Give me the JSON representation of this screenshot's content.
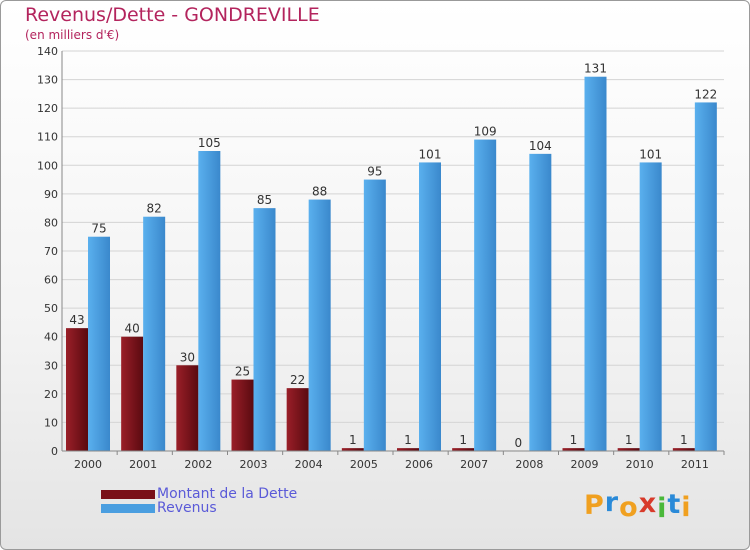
{
  "title": "Revenus/Dette - GONDREVILLE",
  "subtitle": "(en milliers d'€)",
  "colors": {
    "dette": "#7a1018",
    "revenus": "#4a9ee0",
    "title": "#b3245d",
    "legend_text": "#5a5ad8"
  },
  "chart_data": {
    "type": "bar",
    "categories": [
      "2000",
      "2001",
      "2002",
      "2003",
      "2004",
      "2005",
      "2006",
      "2007",
      "2008",
      "2009",
      "2010",
      "2011"
    ],
    "series": [
      {
        "name": "Montant de la Dette",
        "values": [
          43,
          40,
          30,
          25,
          22,
          1,
          1,
          1,
          0,
          1,
          1,
          1
        ]
      },
      {
        "name": "Revenus",
        "values": [
          75,
          82,
          105,
          85,
          88,
          95,
          101,
          109,
          104,
          131,
          101,
          122
        ]
      }
    ],
    "ylim": [
      0,
      140
    ],
    "yticks": [
      0,
      10,
      20,
      30,
      40,
      50,
      60,
      70,
      80,
      90,
      100,
      110,
      120,
      130,
      140
    ],
    "grid": true,
    "legend_position": "bottom-left"
  },
  "legend": {
    "items": [
      {
        "label": "Montant de la Dette",
        "color": "#7a1018"
      },
      {
        "label": "Revenus",
        "color": "#4a9ee0"
      }
    ]
  },
  "logo": {
    "text": "Proxiti",
    "letters": [
      {
        "ch": "P",
        "color": "#f0a020"
      },
      {
        "ch": "r",
        "color": "#2a8ad8"
      },
      {
        "ch": "o",
        "color": "#f0a020"
      },
      {
        "ch": "x",
        "color": "#d83a2a"
      },
      {
        "ch": "i",
        "color": "#4ab83a"
      },
      {
        "ch": "t",
        "color": "#2a8ad8"
      },
      {
        "ch": "i",
        "color": "#f0a020"
      }
    ]
  }
}
